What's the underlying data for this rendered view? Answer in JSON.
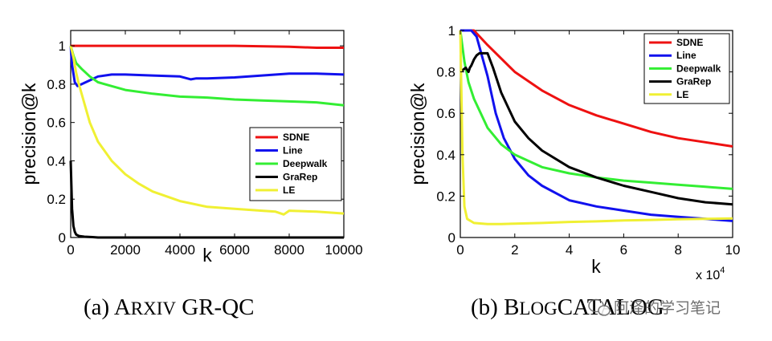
{
  "chart_data": [
    {
      "type": "line",
      "caption_prefix": "(a) A",
      "caption_sc": "RXIV",
      "caption_rest": " GR-QC",
      "xlabel": "k",
      "ylabel": "precision@k",
      "xlim": [
        0,
        10000
      ],
      "ylim": [
        0,
        1.08
      ],
      "xticks": [
        0,
        2000,
        4000,
        6000,
        8000,
        10000
      ],
      "xtick_labels": [
        "0",
        "2000",
        "4000",
        "6000",
        "8000",
        "10000"
      ],
      "yticks": [
        0,
        0.2,
        0.4,
        0.6,
        0.8,
        1
      ],
      "ytick_labels": [
        "0",
        "0.2",
        "0.4",
        "0.6",
        "0.8",
        "1"
      ],
      "legend": [
        "SDNE",
        "Line",
        "Deepwalk",
        "GraRep",
        "LE"
      ],
      "legend_position": "center-right",
      "series": [
        {
          "name": "SDNE",
          "color": "#ee1111",
          "x": [
            0,
            100,
            500,
            1000,
            2000,
            4000,
            6000,
            8000,
            9000,
            10000
          ],
          "y": [
            1.0,
            1.0,
            1.0,
            1.0,
            1.0,
            1.0,
            1.0,
            0.995,
            0.99,
            0.99
          ]
        },
        {
          "name": "Line",
          "color": "#1111ee",
          "x": [
            0,
            50,
            150,
            250,
            400,
            700,
            1000,
            1500,
            2000,
            3000,
            4000,
            4400,
            4600,
            5000,
            6000,
            7000,
            8000,
            9000,
            10000
          ],
          "y": [
            1.0,
            0.9,
            0.81,
            0.79,
            0.8,
            0.82,
            0.84,
            0.85,
            0.85,
            0.845,
            0.84,
            0.825,
            0.83,
            0.83,
            0.835,
            0.845,
            0.855,
            0.855,
            0.85
          ]
        },
        {
          "name": "Deepwalk",
          "color": "#33ee33",
          "x": [
            0,
            100,
            200,
            400,
            700,
            1000,
            1500,
            2000,
            3000,
            4000,
            5000,
            6000,
            7000,
            8000,
            9000,
            10000
          ],
          "y": [
            1.0,
            0.95,
            0.91,
            0.88,
            0.84,
            0.81,
            0.79,
            0.77,
            0.75,
            0.735,
            0.73,
            0.72,
            0.715,
            0.71,
            0.705,
            0.69
          ]
        },
        {
          "name": "GraRep",
          "color": "#000000",
          "x": [
            0,
            50,
            100,
            150,
            200,
            300,
            500,
            800,
            1000,
            2000,
            4000,
            6000,
            8000,
            10000
          ],
          "y": [
            0.4,
            0.15,
            0.06,
            0.03,
            0.015,
            0.008,
            0.004,
            0.002,
            0.0,
            0.0,
            0.0,
            0.0,
            0.0,
            0.0
          ]
        },
        {
          "name": "LE",
          "color": "#f0f033",
          "x": [
            0,
            100,
            200,
            300,
            500,
            700,
            1000,
            1500,
            2000,
            2500,
            3000,
            4000,
            5000,
            6000,
            7000,
            7500,
            7800,
            8000,
            9000,
            10000
          ],
          "y": [
            1.0,
            0.94,
            0.86,
            0.8,
            0.7,
            0.6,
            0.5,
            0.4,
            0.33,
            0.28,
            0.24,
            0.19,
            0.16,
            0.15,
            0.14,
            0.135,
            0.12,
            0.14,
            0.135,
            0.125
          ]
        }
      ]
    },
    {
      "type": "line",
      "caption_prefix": "(b) B",
      "caption_sc": "LOG",
      "caption_rest": "CATALOG",
      "xlabel": "k",
      "ylabel": "precision@k",
      "x_multiplier_label": "x 10",
      "x_multiplier_exp": "4",
      "xlim": [
        0,
        10
      ],
      "ylim": [
        0,
        1.0
      ],
      "xticks": [
        0,
        2,
        4,
        6,
        8,
        10
      ],
      "xtick_labels": [
        "0",
        "2",
        "4",
        "6",
        "8",
        "10"
      ],
      "yticks": [
        0,
        0.2,
        0.4,
        0.6,
        0.8,
        1
      ],
      "ytick_labels": [
        "0",
        "0.2",
        "0.4",
        "0.6",
        "0.8",
        "1"
      ],
      "legend": [
        "SDNE",
        "Line",
        "Deepwalk",
        "GraRep",
        "LE"
      ],
      "legend_position": "top-right",
      "series": [
        {
          "name": "SDNE",
          "color": "#ee1111",
          "x": [
            0,
            0.5,
            1,
            2,
            3,
            4,
            5,
            6,
            7,
            8,
            9,
            10
          ],
          "y": [
            1.0,
            1.0,
            0.93,
            0.8,
            0.71,
            0.64,
            0.59,
            0.55,
            0.51,
            0.48,
            0.46,
            0.44
          ]
        },
        {
          "name": "Line",
          "color": "#1111ee",
          "x": [
            0,
            0.4,
            0.6,
            1,
            1.3,
            1.6,
            2,
            2.5,
            3,
            4,
            5,
            6,
            7,
            8,
            9,
            10
          ],
          "y": [
            1.0,
            1.0,
            0.97,
            0.78,
            0.6,
            0.48,
            0.38,
            0.3,
            0.25,
            0.18,
            0.15,
            0.13,
            0.11,
            0.1,
            0.09,
            0.08
          ]
        },
        {
          "name": "Deepwalk",
          "color": "#33ee33",
          "x": [
            0,
            0.15,
            0.3,
            0.5,
            1,
            1.5,
            2,
            3,
            4,
            5,
            6,
            7,
            8,
            9,
            10
          ],
          "y": [
            1.0,
            0.85,
            0.75,
            0.67,
            0.53,
            0.45,
            0.4,
            0.34,
            0.31,
            0.29,
            0.275,
            0.265,
            0.255,
            0.245,
            0.235
          ]
        },
        {
          "name": "GraRep",
          "color": "#000000",
          "x": [
            0,
            0.2,
            0.3,
            0.35,
            0.4,
            0.5,
            0.6,
            0.7,
            0.9,
            1,
            1.2,
            1.5,
            2,
            2.5,
            3,
            4,
            5,
            6,
            7,
            8,
            9,
            10
          ],
          "y": [
            0.8,
            0.82,
            0.8,
            0.82,
            0.83,
            0.86,
            0.88,
            0.89,
            0.89,
            0.89,
            0.82,
            0.7,
            0.56,
            0.48,
            0.42,
            0.34,
            0.29,
            0.25,
            0.22,
            0.19,
            0.17,
            0.16
          ]
        },
        {
          "name": "LE",
          "color": "#f0f033",
          "x": [
            0,
            0.08,
            0.15,
            0.25,
            0.5,
            1,
            1.5,
            2,
            3,
            4,
            5,
            6,
            7,
            8,
            9,
            10
          ],
          "y": [
            1.0,
            0.4,
            0.15,
            0.09,
            0.07,
            0.065,
            0.065,
            0.067,
            0.07,
            0.075,
            0.078,
            0.082,
            0.085,
            0.088,
            0.09,
            0.092
          ]
        }
      ]
    }
  ],
  "watermark": "阿泽的学习笔记",
  "watermark_icon": "wechat-icon"
}
